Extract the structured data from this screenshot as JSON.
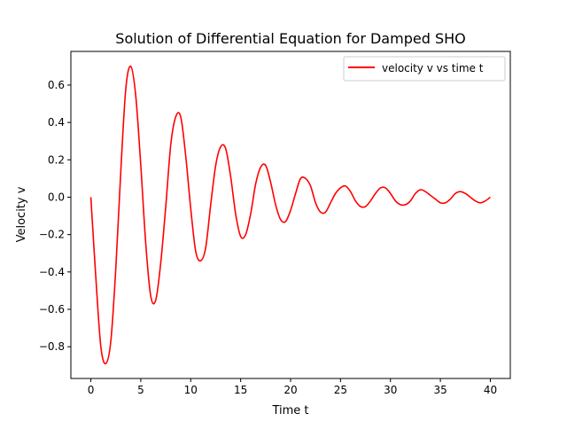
{
  "chart_data": {
    "type": "line",
    "title": "Solution of Differential Equation for Damped SHO",
    "xlabel": "Time t",
    "ylabel": "Velocity v",
    "xlim": [
      -2,
      42
    ],
    "ylim": [
      -0.97,
      0.78
    ],
    "x_ticks": [
      0,
      5,
      10,
      15,
      20,
      25,
      30,
      35,
      40
    ],
    "x_tick_labels": [
      "0",
      "5",
      "10",
      "15",
      "20",
      "25",
      "30",
      "35",
      "40"
    ],
    "y_ticks": [
      -0.8,
      -0.6,
      -0.4,
      -0.2,
      0.0,
      0.2,
      0.4,
      0.6
    ],
    "y_tick_labels": [
      "−0.8",
      "−0.6",
      "−0.4",
      "−0.2",
      "0.0",
      "0.2",
      "0.4",
      "0.6"
    ],
    "grid": false,
    "legend_position": "top-right",
    "series": [
      {
        "name": "velocity v vs time t",
        "color": "#ff0000",
        "x": [
          0,
          0.5,
          1.0,
          1.5,
          2.0,
          2.5,
          3.0,
          3.5,
          4.0,
          4.5,
          5.0,
          5.5,
          6.0,
          6.5,
          7.0,
          7.5,
          8.0,
          8.5,
          9.0,
          9.5,
          10.0,
          10.5,
          11.0,
          11.5,
          12.0,
          12.5,
          13.0,
          13.5,
          14.0,
          14.5,
          15.0,
          15.5,
          16.0,
          16.5,
          17.0,
          17.5,
          18.0,
          18.5,
          19.0,
          19.5,
          20.0,
          20.5,
          21.0,
          21.5,
          22.0,
          22.5,
          23.0,
          23.5,
          24.0,
          24.5,
          25.0,
          25.5,
          26.0,
          26.5,
          27.0,
          27.5,
          28.0,
          28.5,
          29.0,
          29.5,
          30.0,
          30.5,
          31.0,
          31.5,
          32.0,
          32.5,
          33.0,
          33.5,
          34.0,
          34.5,
          35.0,
          35.5,
          36.0,
          36.5,
          37.0,
          37.5,
          38.0,
          38.5,
          39.0,
          39.5,
          40.0
        ],
        "y": [
          0.0,
          -0.43,
          -0.8,
          -0.89,
          -0.77,
          -0.38,
          0.14,
          0.58,
          0.7,
          0.54,
          0.17,
          -0.25,
          -0.53,
          -0.55,
          -0.35,
          -0.05,
          0.28,
          0.43,
          0.43,
          0.22,
          -0.06,
          -0.29,
          -0.34,
          -0.27,
          -0.04,
          0.17,
          0.27,
          0.26,
          0.11,
          -0.09,
          -0.21,
          -0.2,
          -0.09,
          0.07,
          0.16,
          0.17,
          0.08,
          -0.04,
          -0.12,
          -0.13,
          -0.07,
          0.02,
          0.1,
          0.1,
          0.06,
          -0.03,
          -0.08,
          -0.08,
          -0.03,
          0.02,
          0.05,
          0.06,
          0.03,
          -0.02,
          -0.05,
          -0.05,
          -0.02,
          0.02,
          0.05,
          0.05,
          0.02,
          -0.02,
          -0.04,
          -0.04,
          -0.02,
          0.02,
          0.04,
          0.03,
          0.01,
          -0.01,
          -0.03,
          -0.03,
          -0.01,
          0.02,
          0.03,
          0.02,
          0.0,
          -0.02,
          -0.03,
          -0.02,
          0.0
        ]
      }
    ]
  }
}
